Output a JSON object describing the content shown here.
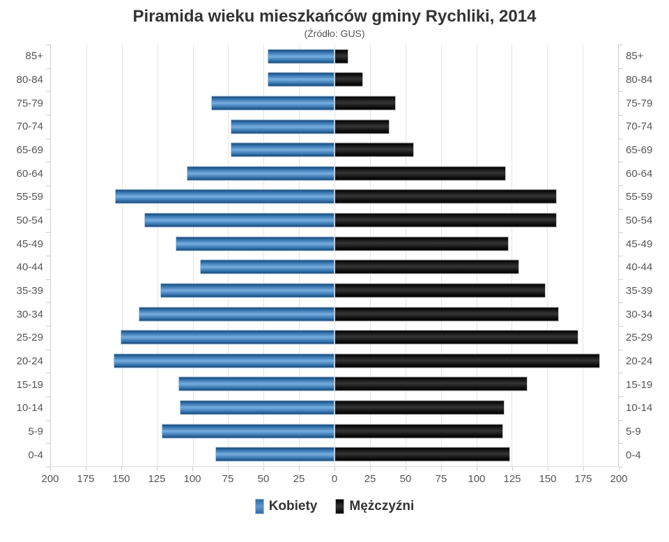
{
  "chart_data": {
    "type": "bar",
    "subtype": "population-pyramid",
    "title": "Piramida wieku mieszkańców gminy Rychliki, 2014",
    "subtitle": "(Źródło: GUS)",
    "xlabel": "",
    "ylabel": "",
    "grid": true,
    "legend_position": "bottom",
    "xlim": [
      -200,
      200
    ],
    "x_tick_step": 25,
    "x_ticks": [
      200,
      175,
      150,
      125,
      100,
      75,
      50,
      25,
      0,
      25,
      50,
      75,
      100,
      125,
      150,
      175,
      200
    ],
    "categories": [
      "85+",
      "80-84",
      "75-79",
      "70-74",
      "65-69",
      "60-64",
      "55-59",
      "50-54",
      "45-49",
      "40-44",
      "35-39",
      "30-34",
      "25-29",
      "20-24",
      "15-19",
      "10-14",
      "5-9",
      "0-4"
    ],
    "series": [
      {
        "name": "Kobiety",
        "side": "left",
        "color": "#4f8cc4",
        "values": [
          47,
          47,
          87,
          73,
          73,
          104,
          155,
          134,
          112,
          95,
          123,
          138,
          151,
          156,
          110,
          109,
          122,
          84
        ]
      },
      {
        "name": "Mężczyźni",
        "side": "right",
        "color": "#1a1a1a",
        "values": [
          10,
          20,
          43,
          39,
          56,
          121,
          157,
          157,
          123,
          130,
          149,
          158,
          172,
          187,
          136,
          120,
          119,
          124
        ]
      }
    ],
    "colors": {
      "kobiety": "#4f8cc4",
      "mezczyzni": "#1a1a1a",
      "axis_text": "#555555",
      "title_text": "#333333",
      "gridline": "#e4e4e4"
    }
  }
}
